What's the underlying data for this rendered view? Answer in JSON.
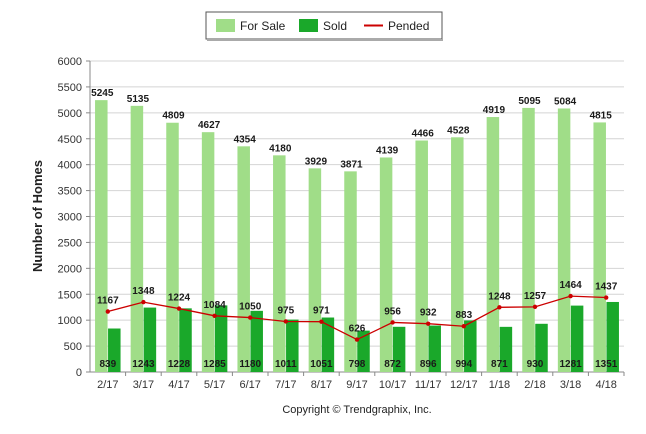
{
  "chart_data": {
    "type": "bar",
    "ylabel": "Number of Homes",
    "xlabel": "",
    "ylim": [
      0,
      6000
    ],
    "yticks": [
      0,
      500,
      1000,
      1500,
      2000,
      2500,
      3000,
      3500,
      4000,
      4500,
      5000,
      5500,
      6000
    ],
    "grid": true,
    "legend_position": "top-center",
    "categories": [
      "2/17",
      "3/17",
      "4/17",
      "5/17",
      "6/17",
      "7/17",
      "8/17",
      "9/17",
      "10/17",
      "11/17",
      "12/17",
      "1/18",
      "2/18",
      "3/18",
      "4/18"
    ],
    "series": [
      {
        "name": "For Sale",
        "type": "bar",
        "color": "#a0dd88",
        "values": [
          5245,
          5135,
          4809,
          4627,
          4354,
          4180,
          3929,
          3871,
          4139,
          4466,
          4528,
          4919,
          5095,
          5084,
          4815
        ]
      },
      {
        "name": "Sold",
        "type": "bar",
        "color": "#1aa82a",
        "values": [
          839,
          1243,
          1228,
          1285,
          1180,
          1011,
          1051,
          798,
          872,
          896,
          994,
          871,
          930,
          1281,
          1351
        ]
      },
      {
        "name": "Pended",
        "type": "line",
        "color": "#cc0000",
        "values": [
          1167,
          1348,
          1224,
          1084,
          1050,
          975,
          971,
          626,
          956,
          932,
          883,
          1248,
          1257,
          1464,
          1437
        ]
      }
    ]
  },
  "copyright": "Copyright © Trendgraphix, Inc."
}
